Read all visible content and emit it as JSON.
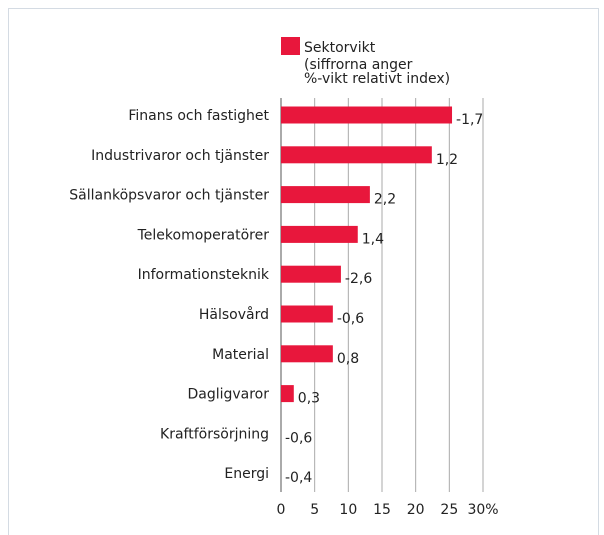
{
  "chart_data": {
    "type": "bar",
    "orientation": "horizontal",
    "categories": [
      "Finans och fastighet",
      "Industrivaror och tjänster",
      "Sällanköpsvaror och tjänster",
      "Telekomoperatörer",
      "Informationsteknik",
      "Hälsovård",
      "Material",
      "Dagligvaror",
      "Kraftförsörjning",
      "Energi"
    ],
    "series": [
      {
        "name": "Sektorvikt",
        "color": "#e8173c",
        "values": [
          25.4,
          22.4,
          13.2,
          11.4,
          8.9,
          7.7,
          7.7,
          1.9,
          0,
          0
        ]
      }
    ],
    "legend_note": [
      "(siffrorna anger",
      "%-vikt relativt index)"
    ],
    "relative_labels": [
      "-1,7",
      "1,2",
      "2,2",
      "1,4",
      "-2,6",
      "-0,6",
      "0,8",
      "0,3",
      "-0,6",
      "-0,4"
    ],
    "xlim": [
      0,
      30
    ],
    "xticks": [
      0,
      5,
      10,
      15,
      20,
      25,
      {
        "value": 30,
        "label": "30%"
      }
    ],
    "grid": true
  }
}
